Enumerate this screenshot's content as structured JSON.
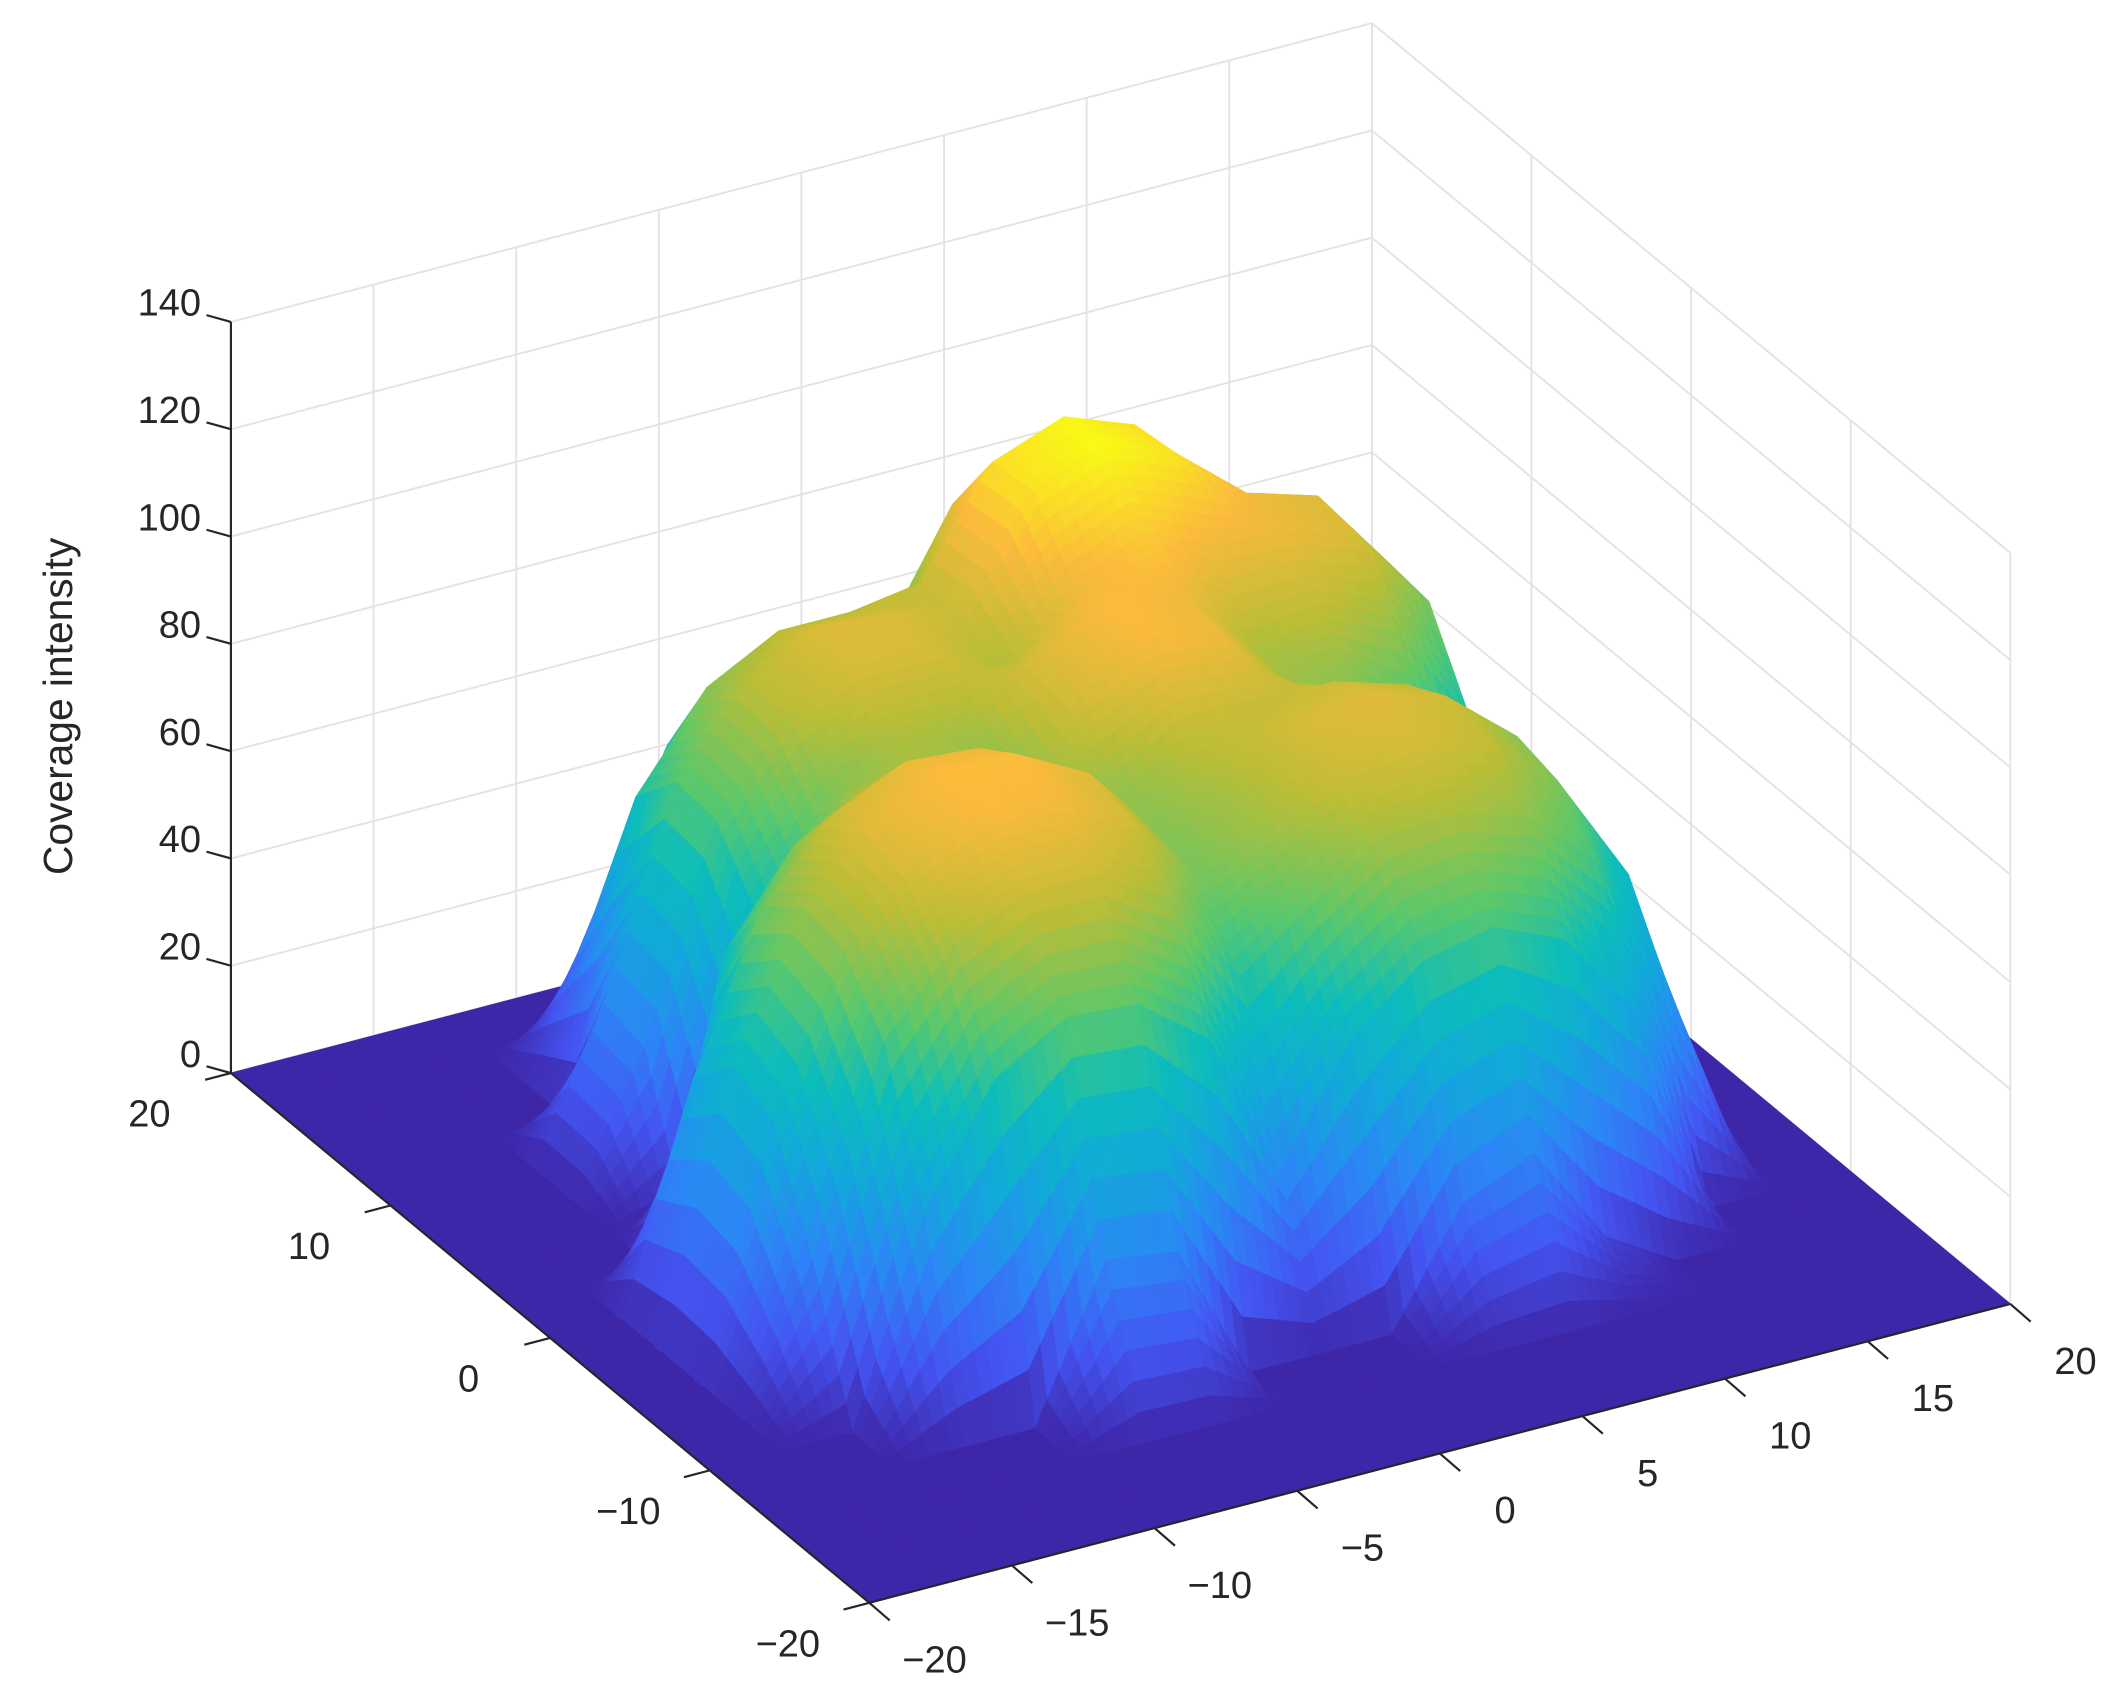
{
  "chart_data": {
    "type": "surface",
    "zlabel": "Coverage intensity",
    "x": [
      -20,
      -17.5,
      -15,
      -12.5,
      -10,
      -7.5,
      -5,
      -2.5,
      0,
      2.5,
      5,
      7.5,
      10,
      12.5,
      15,
      17.5,
      20
    ],
    "y": [
      -20,
      -17.5,
      -15,
      -12.5,
      -10,
      -7.5,
      -5,
      -2.5,
      0,
      2.5,
      5,
      7.5,
      10,
      12.5,
      15,
      17.5,
      20
    ],
    "z": [
      [
        0,
        0,
        0,
        0,
        0,
        0,
        0,
        0,
        0,
        0,
        0,
        0,
        0,
        0,
        0,
        0,
        0
      ],
      [
        0,
        0,
        0,
        0,
        0,
        0,
        0,
        0,
        0,
        0,
        0,
        0,
        0,
        0,
        0,
        0,
        0
      ],
      [
        0,
        0,
        0,
        0,
        0,
        0,
        0,
        0,
        0,
        0,
        0,
        0,
        0,
        0,
        0,
        0,
        0
      ],
      [
        0,
        0,
        0,
        0,
        0,
        28,
        26,
        0,
        0,
        0,
        21,
        27,
        8,
        0,
        0,
        0,
        0
      ],
      [
        0,
        0,
        0,
        37,
        59,
        67,
        66,
        56,
        28,
        49,
        60,
        63,
        57,
        40,
        0,
        0,
        0
      ],
      [
        0,
        0,
        26,
        63,
        78,
        84,
        84,
        76,
        58,
        68,
        77,
        78,
        74,
        62,
        35,
        0,
        0
      ],
      [
        0,
        0,
        46,
        74,
        87,
        93,
        92,
        85,
        70,
        77,
        84,
        86,
        82,
        71,
        50,
        0,
        0
      ],
      [
        0,
        0,
        50,
        76,
        89,
        94,
        94,
        87,
        72,
        78,
        86,
        88,
        84,
        73,
        53,
        0,
        0
      ],
      [
        0,
        0,
        41,
        70,
        84,
        90,
        89,
        82,
        74,
        82,
        82,
        84,
        80,
        69,
        46,
        0,
        0
      ],
      [
        0,
        0,
        0,
        55,
        72,
        79,
        78,
        70,
        86,
        93,
        90,
        76,
        69,
        55,
        21,
        0,
        0
      ],
      [
        0,
        0,
        0,
        0,
        53,
        71,
        78,
        77,
        87,
        94,
        91,
        78,
        80,
        74,
        55,
        0,
        0
      ],
      [
        0,
        0,
        0,
        25,
        64,
        80,
        86,
        86,
        78,
        91,
        97,
        91,
        90,
        86,
        70,
        27,
        0
      ],
      [
        0,
        0,
        0,
        27,
        65,
        80,
        87,
        86,
        83,
        102,
        107,
        102,
        91,
        87,
        71,
        30,
        0
      ],
      [
        0,
        0,
        0,
        0,
        56,
        73,
        80,
        80,
        82,
        101,
        106,
        101,
        83,
        78,
        60,
        0,
        0
      ],
      [
        0,
        0,
        0,
        0,
        29,
        56,
        65,
        64,
        65,
        87,
        93,
        87,
        65,
        54,
        0,
        0,
        0
      ],
      [
        0,
        0,
        0,
        0,
        0,
        0,
        27,
        25,
        0,
        53,
        63,
        53,
        0,
        0,
        0,
        0,
        0
      ],
      [
        0,
        0,
        0,
        0,
        0,
        0,
        0,
        0,
        0,
        0,
        0,
        0,
        0,
        0,
        0,
        0,
        0
      ]
    ],
    "xlim": [
      -20,
      20
    ],
    "ylim": [
      -20,
      20
    ],
    "zlim": [
      0,
      140
    ],
    "xticks": [
      {
        "value": -20,
        "label": "−20"
      },
      {
        "value": -15,
        "label": "−15"
      },
      {
        "value": -10,
        "label": "−10"
      },
      {
        "value": -5,
        "label": "−5"
      },
      0,
      5,
      10,
      15,
      20
    ],
    "yticks": [
      {
        "value": -20,
        "label": "−20"
      },
      {
        "value": -10,
        "label": "−10"
      },
      0,
      10,
      20
    ],
    "zticks": [
      0,
      20,
      40,
      60,
      80,
      100,
      120,
      140
    ],
    "colormap": "parula",
    "grid": true
  }
}
